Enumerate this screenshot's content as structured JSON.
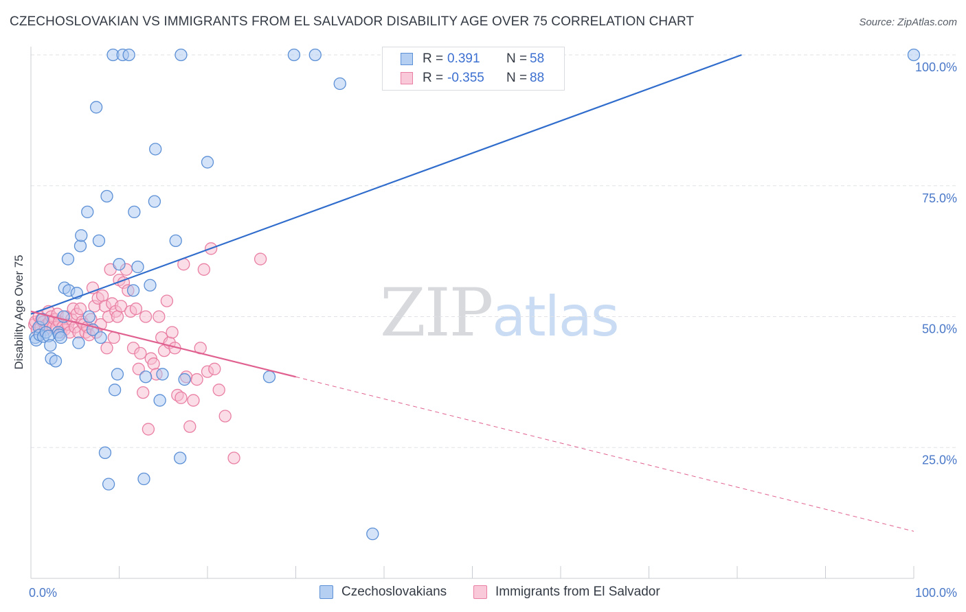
{
  "header": {
    "title": "CZECHOSLOVAKIAN VS IMMIGRANTS FROM EL SALVADOR DISABILITY AGE OVER 75 CORRELATION CHART",
    "source": "Source: ZipAtlas.com"
  },
  "watermark": {
    "zip": "ZIP",
    "atlas": "atlas"
  },
  "legend_top": {
    "rows": [
      {
        "r_label": "R =",
        "r_value": "0.391",
        "n_label": "N =",
        "n_value": "58"
      },
      {
        "r_label": "R =",
        "r_value": "-0.355",
        "n_label": "N =",
        "n_value": "88"
      }
    ]
  },
  "colors": {
    "blue_fill": "#a9c8f0",
    "blue_stroke": "#5b8fd6",
    "blue_line": "#2f6ccc",
    "pink_fill": "#f7bcd0",
    "pink_stroke": "#e97fa3",
    "pink_line": "#e0608f",
    "grid": "#dfe2e6",
    "tick_text": "#4a78c8"
  },
  "chart_data": {
    "type": "scatter",
    "title": "CZECHOSLOVAKIAN VS IMMIGRANTS FROM EL SALVADOR DISABILITY AGE OVER 75 CORRELATION CHART",
    "xlabel": "",
    "ylabel": "Disability Age Over 75",
    "xlim": [
      0,
      100
    ],
    "ylim": [
      0,
      102
    ],
    "x_tick_labels": [
      "0.0%",
      "100.0%"
    ],
    "y_ticks": [
      25,
      50,
      75,
      100
    ],
    "y_tick_labels": [
      "25.0%",
      "50.0%",
      "75.0%",
      "100.0%"
    ],
    "grid": true,
    "legend_placement": "bottom",
    "series": [
      {
        "name": "Czechoslovakians",
        "color": "#a9c8f0",
        "x": [
          0.5,
          0.6,
          0.9,
          1.0,
          1.3,
          1.4,
          1.7,
          2.0,
          2.2,
          2.3,
          2.8,
          3.1,
          3.2,
          3.4,
          3.7,
          3.8,
          4.2,
          4.3,
          5.2,
          5.4,
          5.6,
          5.7,
          6.4,
          6.6,
          7.0,
          7.4,
          7.7,
          7.9,
          8.4,
          8.6,
          8.8,
          9.3,
          9.5,
          9.8,
          10.0,
          10.4,
          11.1,
          11.6,
          11.7,
          12.1,
          12.8,
          13.0,
          13.5,
          14.0,
          14.1,
          14.6,
          14.9,
          16.4,
          16.9,
          17.0,
          17.4,
          20.0,
          27.0,
          29.8,
          32.2,
          35.0,
          38.7,
          100.0
        ],
        "y": [
          46.0,
          45.5,
          48.0,
          46.5,
          49.5,
          46.2,
          47.0,
          46.3,
          44.5,
          42.0,
          41.5,
          47.0,
          46.5,
          46.0,
          50.0,
          55.5,
          61.0,
          55.0,
          54.5,
          45.0,
          63.5,
          65.5,
          70.0,
          50.0,
          47.5,
          90.0,
          64.5,
          46.0,
          24.0,
          73.0,
          18.0,
          100.0,
          36.0,
          39.0,
          60.0,
          100.0,
          100.0,
          55.0,
          70.0,
          59.5,
          19.0,
          38.5,
          56.0,
          72.0,
          82.0,
          34.0,
          39.0,
          64.5,
          23.0,
          100.0,
          38.0,
          79.5,
          38.5,
          100.0,
          100.0,
          94.5,
          8.5,
          100.0
        ]
      },
      {
        "name": "Immigrants from El Salvador",
        "color": "#f7bcd0",
        "x": [
          0.4,
          0.5,
          0.7,
          0.9,
          1.1,
          1.2,
          1.4,
          1.6,
          1.8,
          2.0,
          2.1,
          2.3,
          2.5,
          2.7,
          2.9,
          3.0,
          3.2,
          3.4,
          3.6,
          3.8,
          4.0,
          4.2,
          4.4,
          4.6,
          4.8,
          5.0,
          5.2,
          5.4,
          5.6,
          5.8,
          6.0,
          6.2,
          6.4,
          6.6,
          6.8,
          7.0,
          7.2,
          7.4,
          7.6,
          7.9,
          8.1,
          8.4,
          8.6,
          8.8,
          9.0,
          9.2,
          9.4,
          9.6,
          9.8,
          10.0,
          10.2,
          10.5,
          10.8,
          11.0,
          11.3,
          11.6,
          11.9,
          12.2,
          12.4,
          12.7,
          13.0,
          13.3,
          13.6,
          13.9,
          14.2,
          14.5,
          14.8,
          15.1,
          15.4,
          15.7,
          16.0,
          16.3,
          16.6,
          17.0,
          17.3,
          17.6,
          18.0,
          18.4,
          18.8,
          19.2,
          19.6,
          20.0,
          20.4,
          20.8,
          21.3,
          22.0,
          23.0,
          26.0
        ],
        "y": [
          48.5,
          49.0,
          47.5,
          50.0,
          48.0,
          49.5,
          49.0,
          47.5,
          48.5,
          51.0,
          49.0,
          50.0,
          48.0,
          49.5,
          48.0,
          50.5,
          49.0,
          47.0,
          48.0,
          47.5,
          50.0,
          48.5,
          47.0,
          49.5,
          51.5,
          48.0,
          50.5,
          47.0,
          51.5,
          49.0,
          48.5,
          47.0,
          48.0,
          46.5,
          49.5,
          55.5,
          52.0,
          47.0,
          53.5,
          48.5,
          54.0,
          52.0,
          44.0,
          50.0,
          59.0,
          52.5,
          46.0,
          51.0,
          50.0,
          57.0,
          52.0,
          56.5,
          59.0,
          55.0,
          51.0,
          44.0,
          51.5,
          40.0,
          43.0,
          35.5,
          50.0,
          28.5,
          42.0,
          41.0,
          39.0,
          50.0,
          46.0,
          43.5,
          53.0,
          45.0,
          47.0,
          44.0,
          35.0,
          34.5,
          60.0,
          38.5,
          29.0,
          34.0,
          38.0,
          44.0,
          59.0,
          39.5,
          63.0,
          40.0,
          36.0,
          31.0,
          23.0,
          61.0
        ]
      }
    ],
    "trend_lines": [
      {
        "series": "Czechoslovakians",
        "x0": 0,
        "y0": 50.5,
        "x1": 80.5,
        "y1": 100
      },
      {
        "series": "Immigrants from El Salvador",
        "x0": 0,
        "y0": 51.0,
        "x1": 30,
        "y1": 38.5,
        "dashed_to_x": 100,
        "dashed_to_y": 9.0
      }
    ]
  }
}
